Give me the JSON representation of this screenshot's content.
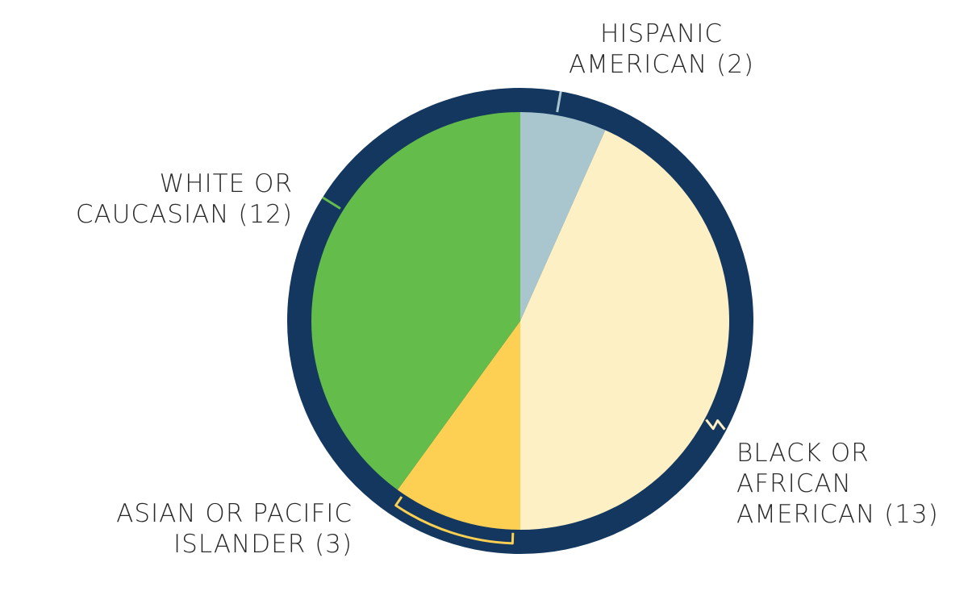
{
  "chart_data": {
    "type": "pie",
    "slices": [
      {
        "category": "HISPANIC AMERICAN",
        "value": 2,
        "color": "#a9c6cf",
        "label_lines": [
          "HISPANIC",
          "AMERICAN (2)"
        ]
      },
      {
        "category": "BLACK OR AFRICAN AMERICAN",
        "value": 13,
        "color": "#fdf0c5",
        "label_lines": [
          "BLACK OR",
          "AFRICAN",
          "AMERICAN (13)"
        ]
      },
      {
        "category": "ASIAN OR PACIFIC ISLANDER",
        "value": 3,
        "color": "#fdd053",
        "label_lines": [
          "ASIAN OR PACIFIC",
          "ISLANDER (3)"
        ]
      },
      {
        "category": "WHITE OR CAUCASIAN",
        "value": 12,
        "color": "#64bc4b",
        "label_lines": [
          "WHITE OR",
          "CAUCASIAN (12)"
        ]
      }
    ],
    "ring_color": "#13375f",
    "start": "12 o'clock",
    "direction": "clockwise"
  }
}
